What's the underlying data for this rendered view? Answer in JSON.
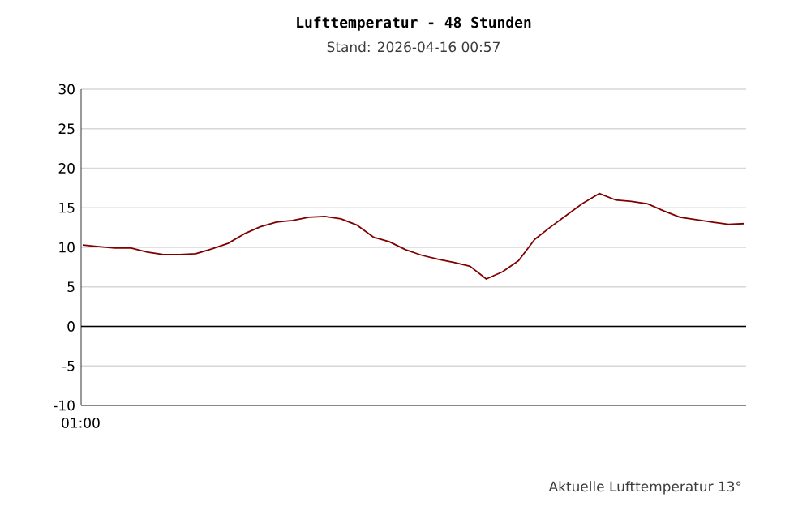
{
  "chart_data": {
    "type": "line",
    "title": "Lufttemperatur - 48 Stunden",
    "subtitle": "Stand: 2026-04-16 00:57",
    "annotations": [
      "01:00",
      "Aktuelle Lufttemperatur 13°"
    ],
    "categories": [
      null,
      null,
      null,
      null,
      null,
      null,
      null,
      null,
      null,
      null,
      null,
      null,
      null,
      null,
      null,
      null,
      null,
      null,
      null,
      null,
      null,
      null,
      null,
      null,
      null,
      null,
      null,
      null,
      null,
      null,
      null,
      null,
      null,
      null,
      null,
      null,
      null,
      null,
      null,
      null,
      null,
      null
    ],
    "series": [
      {
        "color": "#800000",
        "values": [
          10.3,
          10.1,
          9.9,
          9.9,
          9.4,
          9.1,
          9.1,
          9.2,
          9.8,
          10.5,
          11.7,
          12.6,
          13.2,
          13.4,
          13.8,
          13.9,
          13.6,
          12.8,
          11.3,
          10.7,
          9.7,
          9.0,
          8.5,
          8.1,
          7.6,
          6.0,
          6.9,
          8.3,
          11.0,
          12.6,
          14.1,
          15.6,
          16.8,
          16.0,
          15.8,
          15.5,
          14.6,
          13.8,
          13.5,
          13.2,
          12.9,
          13.0
        ]
      }
    ],
    "ylim": [
      -10,
      30
    ],
    "yticks": [
      {
        "value": -10,
        "label": "-10"
      },
      {
        "value": -5,
        "label": "-5"
      },
      {
        "value": 0,
        "label": "0"
      },
      {
        "value": 5,
        "label": "5"
      },
      {
        "value": 10,
        "label": "10"
      },
      {
        "value": 15,
        "label": "15"
      },
      {
        "value": 20,
        "label": "20"
      },
      {
        "value": 25,
        "label": "25"
      },
      {
        "value": 30,
        "label": "30"
      }
    ],
    "grid": "y",
    "ref_lines": [
      {
        "axis": "y",
        "value": 0,
        "color": "#000000"
      }
    ]
  }
}
